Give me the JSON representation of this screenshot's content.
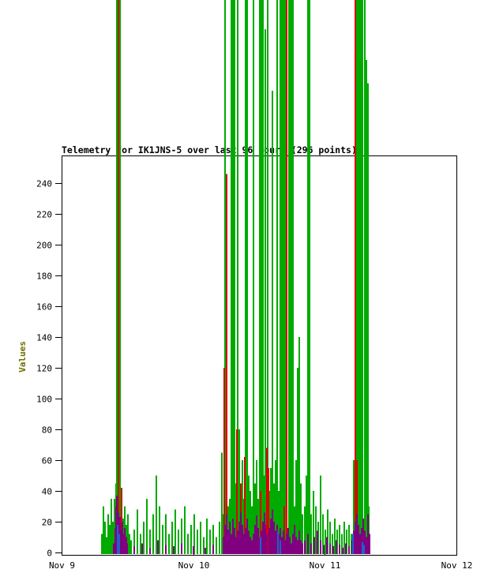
{
  "title": "Telemetry for IK1JNS-5 over last 96 hours (296 points)",
  "y_axis": {
    "label": "Values",
    "label_color": "#6e6e00",
    "ticks": [
      0,
      20,
      40,
      60,
      80,
      100,
      120,
      140,
      160,
      180,
      200,
      220,
      240
    ]
  },
  "x_axis": {
    "ticks": [
      "Nov 9",
      "Nov 10",
      "Nov 11",
      "Nov 12"
    ]
  },
  "colors": {
    "border": "#000000",
    "background": "#ffffff"
  },
  "chart_data": {
    "type": "bar",
    "subtype": "impulse-spikes",
    "title": "Telemetry for IK1JNS-5 over last 96 hours (296 points)",
    "xlabel": "",
    "ylabel": "Values",
    "x_unit": "hours since Nov 9 00:00",
    "x_range": [
      0,
      72
    ],
    "ylim_visible": [
      0,
      258
    ],
    "note_values_above_visible_range_are_drawn_overflowing_plot_top": true,
    "series": [
      {
        "name": "channel-green",
        "color": "#00aa00",
        "points": [
          [
            7.3,
            12
          ],
          [
            7.6,
            30
          ],
          [
            7.9,
            20
          ],
          [
            8.2,
            10
          ],
          [
            8.5,
            25
          ],
          [
            8.8,
            18
          ],
          [
            9.1,
            35
          ],
          [
            9.3,
            20
          ],
          [
            9.6,
            35
          ],
          [
            9.9,
            45
          ],
          [
            10.1,
            380
          ],
          [
            10.3,
            330
          ],
          [
            10.6,
            380
          ],
          [
            10.9,
            40
          ],
          [
            11.2,
            22
          ],
          [
            11.5,
            30
          ],
          [
            11.8,
            18
          ],
          [
            12.1,
            25
          ],
          [
            12.4,
            12
          ],
          [
            12.7,
            8
          ],
          [
            13.2,
            15
          ],
          [
            13.8,
            28
          ],
          [
            14.4,
            12
          ],
          [
            15.0,
            20
          ],
          [
            15.6,
            35
          ],
          [
            16.1,
            15
          ],
          [
            16.7,
            25
          ],
          [
            17.3,
            50
          ],
          [
            17.9,
            30
          ],
          [
            18.4,
            18
          ],
          [
            19.0,
            25
          ],
          [
            19.6,
            12
          ],
          [
            20.2,
            20
          ],
          [
            20.7,
            28
          ],
          [
            21.3,
            15
          ],
          [
            21.9,
            22
          ],
          [
            22.5,
            30
          ],
          [
            23.0,
            12
          ],
          [
            23.6,
            18
          ],
          [
            24.2,
            25
          ],
          [
            24.8,
            15
          ],
          [
            25.3,
            20
          ],
          [
            25.9,
            10
          ],
          [
            26.5,
            22
          ],
          [
            27.1,
            15
          ],
          [
            27.6,
            18
          ],
          [
            28.2,
            10
          ],
          [
            28.8,
            20
          ],
          [
            29.2,
            65
          ],
          [
            29.5,
            25
          ],
          [
            29.8,
            380
          ],
          [
            30.1,
            40
          ],
          [
            30.4,
            30
          ],
          [
            30.7,
            35
          ],
          [
            31.0,
            380
          ],
          [
            31.2,
            400
          ],
          [
            31.5,
            380
          ],
          [
            31.8,
            45
          ],
          [
            32.1,
            370
          ],
          [
            32.4,
            80
          ],
          [
            32.7,
            45
          ],
          [
            33.0,
            60
          ],
          [
            33.3,
            35
          ],
          [
            33.6,
            380
          ],
          [
            33.8,
            370
          ],
          [
            34.1,
            50
          ],
          [
            34.4,
            40
          ],
          [
            34.7,
            30
          ],
          [
            35.0,
            370
          ],
          [
            35.3,
            45
          ],
          [
            35.6,
            60
          ],
          [
            35.9,
            35
          ],
          [
            36.1,
            370
          ],
          [
            36.4,
            380
          ],
          [
            36.7,
            360
          ],
          [
            37.0,
            50
          ],
          [
            37.2,
            340
          ],
          [
            37.5,
            60
          ],
          [
            37.6,
            370
          ],
          [
            37.9,
            40
          ],
          [
            38.2,
            55
          ],
          [
            38.4,
            300
          ],
          [
            38.7,
            45
          ],
          [
            39.0,
            60
          ],
          [
            39.3,
            380
          ],
          [
            39.6,
            40
          ],
          [
            39.9,
            400
          ],
          [
            40.2,
            380
          ],
          [
            40.5,
            400
          ],
          [
            40.8,
            380
          ],
          [
            41.1,
            400
          ],
          [
            41.4,
            380
          ],
          [
            41.6,
            400
          ],
          [
            41.9,
            380
          ],
          [
            42.2,
            400
          ],
          [
            42.5,
            30
          ],
          [
            42.8,
            60
          ],
          [
            43.1,
            120
          ],
          [
            43.4,
            140
          ],
          [
            43.7,
            45
          ],
          [
            43.9,
            25
          ],
          [
            44.4,
            30
          ],
          [
            44.6,
            50
          ],
          [
            44.9,
            380
          ],
          [
            45.2,
            370
          ],
          [
            45.5,
            25
          ],
          [
            45.9,
            40
          ],
          [
            46.4,
            30
          ],
          [
            46.8,
            20
          ],
          [
            47.2,
            50
          ],
          [
            47.7,
            25
          ],
          [
            48.1,
            15
          ],
          [
            48.5,
            28
          ],
          [
            49.0,
            20
          ],
          [
            49.4,
            12
          ],
          [
            49.8,
            22
          ],
          [
            50.3,
            15
          ],
          [
            50.7,
            18
          ],
          [
            51.1,
            12
          ],
          [
            51.6,
            20
          ],
          [
            52.0,
            15
          ],
          [
            52.4,
            18
          ],
          [
            52.8,
            12
          ],
          [
            53.3,
            60
          ],
          [
            53.9,
            400
          ],
          [
            54.1,
            380
          ],
          [
            54.3,
            400
          ],
          [
            54.5,
            380
          ],
          [
            54.7,
            400
          ],
          [
            54.9,
            380
          ],
          [
            55.3,
            380
          ],
          [
            55.6,
            320
          ],
          [
            55.8,
            305
          ],
          [
            56.0,
            30
          ]
        ]
      },
      {
        "name": "channel-red",
        "color": "#dd0000",
        "points": [
          [
            10.4,
            380
          ],
          [
            11.0,
            42
          ],
          [
            29.7,
            120
          ],
          [
            30.1,
            246
          ],
          [
            32.0,
            80
          ],
          [
            32.7,
            45
          ],
          [
            33.4,
            62
          ],
          [
            36.3,
            40
          ],
          [
            37.4,
            68
          ],
          [
            37.7,
            55
          ],
          [
            40.6,
            30
          ],
          [
            41.0,
            380
          ],
          [
            53.6,
            380
          ],
          [
            53.8,
            60
          ]
        ]
      },
      {
        "name": "channel-purple",
        "color": "#800080",
        "points": [
          [
            9.5,
            6
          ],
          [
            9.8,
            16
          ],
          [
            10.0,
            30
          ],
          [
            10.1,
            37
          ],
          [
            10.3,
            26
          ],
          [
            10.5,
            20
          ],
          [
            10.7,
            23
          ],
          [
            10.9,
            15
          ],
          [
            11.1,
            20
          ],
          [
            11.3,
            12
          ],
          [
            11.5,
            16
          ],
          [
            11.8,
            10
          ],
          [
            12.0,
            6
          ],
          [
            13.2,
            4
          ],
          [
            14.7,
            6
          ],
          [
            16.1,
            3
          ],
          [
            17.6,
            8
          ],
          [
            19.0,
            5
          ],
          [
            20.4,
            4
          ],
          [
            21.9,
            6
          ],
          [
            24.0,
            4
          ],
          [
            26.2,
            3
          ],
          [
            27.6,
            5
          ],
          [
            29.5,
            10
          ],
          [
            29.8,
            18
          ],
          [
            30.1,
            25
          ],
          [
            30.4,
            15
          ],
          [
            30.7,
            20
          ],
          [
            31.0,
            12
          ],
          [
            31.2,
            22
          ],
          [
            31.5,
            16
          ],
          [
            31.8,
            10
          ],
          [
            32.1,
            14
          ],
          [
            32.4,
            20
          ],
          [
            32.7,
            26
          ],
          [
            33.0,
            18
          ],
          [
            33.3,
            12
          ],
          [
            33.6,
            16
          ],
          [
            33.8,
            22
          ],
          [
            34.1,
            14
          ],
          [
            34.4,
            10
          ],
          [
            34.7,
            8
          ],
          [
            35.0,
            12
          ],
          [
            35.3,
            18
          ],
          [
            35.6,
            24
          ],
          [
            35.9,
            16
          ],
          [
            36.1,
            10
          ],
          [
            36.4,
            14
          ],
          [
            36.7,
            20
          ],
          [
            37.0,
            26
          ],
          [
            37.2,
            18
          ],
          [
            37.5,
            12
          ],
          [
            37.8,
            16
          ],
          [
            38.1,
            22
          ],
          [
            38.4,
            28
          ],
          [
            38.7,
            20
          ],
          [
            39.0,
            14
          ],
          [
            39.3,
            18
          ],
          [
            39.6,
            12
          ],
          [
            39.9,
            16
          ],
          [
            40.2,
            10
          ],
          [
            40.5,
            14
          ],
          [
            40.8,
            8
          ],
          [
            41.0,
            12
          ],
          [
            41.3,
            16
          ],
          [
            41.6,
            10
          ],
          [
            41.9,
            6
          ],
          [
            42.2,
            12
          ],
          [
            42.5,
            18
          ],
          [
            42.8,
            10
          ],
          [
            43.1,
            8
          ],
          [
            43.4,
            14
          ],
          [
            43.7,
            8
          ],
          [
            43.9,
            6
          ],
          [
            44.4,
            8
          ],
          [
            44.9,
            12
          ],
          [
            45.5,
            6
          ],
          [
            46.1,
            10
          ],
          [
            46.7,
            14
          ],
          [
            47.2,
            8
          ],
          [
            47.8,
            5
          ],
          [
            48.4,
            10
          ],
          [
            49.0,
            6
          ],
          [
            49.5,
            4
          ],
          [
            50.1,
            8
          ],
          [
            50.7,
            5
          ],
          [
            51.3,
            3
          ],
          [
            51.8,
            6
          ],
          [
            52.4,
            4
          ],
          [
            53.0,
            8
          ],
          [
            53.3,
            14
          ],
          [
            53.6,
            20
          ],
          [
            53.9,
            25
          ],
          [
            54.1,
            18
          ],
          [
            54.4,
            12
          ],
          [
            54.7,
            16
          ],
          [
            55.0,
            22
          ],
          [
            55.3,
            14
          ],
          [
            55.6,
            10
          ],
          [
            55.9,
            25
          ],
          [
            56.1,
            12
          ]
        ]
      },
      {
        "name": "channel-blue",
        "color": "#2060c8",
        "points": [
          [
            10.25,
            18
          ],
          [
            10.45,
            12
          ],
          [
            36.3,
            10
          ],
          [
            39.5,
            14
          ],
          [
            39.9,
            8
          ],
          [
            53.1,
            12
          ],
          [
            54.9,
            7
          ],
          [
            55.2,
            5
          ]
        ]
      }
    ]
  }
}
